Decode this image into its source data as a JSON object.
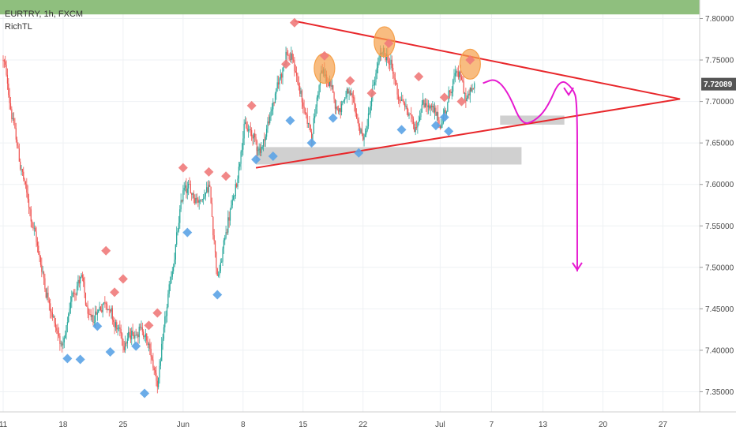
{
  "header": {
    "symbol_line": "EURTRY, 1h, FXCM",
    "indicator": "RichTL"
  },
  "chart_data": {
    "type": "candlestick",
    "symbol": "EURTRY",
    "timeframe": "1h",
    "source": "FXCM",
    "indicator": "RichTL",
    "ylim": [
      7.32,
      7.815
    ],
    "y_ticks": [
      "7.80000",
      "7.75000",
      "7.70000",
      "7.65000",
      "7.60000",
      "7.55000",
      "7.50000",
      "7.45000",
      "7.40000",
      "7.35000"
    ],
    "y_tick_values": [
      7.8,
      7.75,
      7.7,
      7.65,
      7.6,
      7.55,
      7.5,
      7.45,
      7.4,
      7.35
    ],
    "x_range_days": [
      0,
      47
    ],
    "x_ticks": [
      {
        "label": "11",
        "day": 0
      },
      {
        "label": "18",
        "day": 7
      },
      {
        "label": "25",
        "day": 14
      },
      {
        "label": "Jun",
        "day": 21
      },
      {
        "label": "8",
        "day": 28
      },
      {
        "label": "15",
        "day": 35
      },
      {
        "label": "22",
        "day": 42
      },
      {
        "label": "Jul",
        "day": 51
      },
      {
        "label": "7",
        "day": 57
      },
      {
        "label": "13",
        "day": 63
      },
      {
        "label": "20",
        "day": 70
      },
      {
        "label": "27",
        "day": 77
      }
    ],
    "current_price": "7.72089",
    "current_price_value": 7.72089,
    "colors": {
      "up": "#26a69a",
      "down": "#ef5350",
      "triangle": "#e8272b",
      "projection": "#e61ad0",
      "zone": "#c8c8c8",
      "top_band": "#8fbf7e",
      "swing_high_marker": "#f07a7a",
      "swing_low_marker": "#5ba3e6",
      "highlight": "#f5a04a",
      "price_label": "#555555"
    },
    "price_path": [
      [
        0,
        7.75
      ],
      [
        1,
        7.68
      ],
      [
        2,
        7.62
      ],
      [
        3,
        7.57
      ],
      [
        4,
        7.52
      ],
      [
        5,
        7.47
      ],
      [
        6,
        7.43
      ],
      [
        7,
        7.4
      ],
      [
        8,
        7.47
      ],
      [
        9,
        7.49
      ],
      [
        10,
        7.43
      ],
      [
        11,
        7.45
      ],
      [
        12,
        7.46
      ],
      [
        13,
        7.43
      ],
      [
        14,
        7.41
      ],
      [
        15,
        7.42
      ],
      [
        16,
        7.43
      ],
      [
        17,
        7.4
      ],
      [
        18,
        7.36
      ],
      [
        19,
        7.45
      ],
      [
        20,
        7.52
      ],
      [
        21,
        7.6
      ],
      [
        22,
        7.59
      ],
      [
        23,
        7.58
      ],
      [
        24,
        7.6
      ],
      [
        25,
        7.48
      ],
      [
        26,
        7.55
      ],
      [
        27,
        7.59
      ],
      [
        28,
        7.67
      ],
      [
        29,
        7.66
      ],
      [
        30,
        7.64
      ],
      [
        31,
        7.68
      ],
      [
        32,
        7.72
      ],
      [
        33,
        7.76
      ],
      [
        34,
        7.74
      ],
      [
        35,
        7.69
      ],
      [
        36,
        7.66
      ],
      [
        37,
        7.74
      ],
      [
        38,
        7.72
      ],
      [
        39,
        7.69
      ],
      [
        40,
        7.71
      ],
      [
        41,
        7.69
      ],
      [
        42,
        7.65
      ],
      [
        43,
        7.71
      ],
      [
        44,
        7.76
      ],
      [
        45,
        7.75
      ],
      [
        46,
        7.71
      ],
      [
        47,
        7.69
      ],
      [
        48,
        7.67
      ],
      [
        49,
        7.7
      ],
      [
        50,
        7.69
      ],
      [
        51,
        7.67
      ],
      [
        52,
        7.71
      ],
      [
        53,
        7.74
      ],
      [
        54,
        7.7
      ],
      [
        55,
        7.72
      ]
    ],
    "swing_highs": [
      [
        12.0,
        7.52
      ],
      [
        14.0,
        7.486
      ],
      [
        13.0,
        7.47
      ],
      [
        18.0,
        7.445
      ],
      [
        17.0,
        7.43
      ],
      [
        21.0,
        7.62
      ],
      [
        24.0,
        7.615
      ],
      [
        26.0,
        7.61
      ],
      [
        29.0,
        7.695
      ],
      [
        33.0,
        7.745
      ],
      [
        34.0,
        7.795
      ],
      [
        37.5,
        7.755
      ],
      [
        40.5,
        7.725
      ],
      [
        43.0,
        7.71
      ],
      [
        45.0,
        7.77
      ],
      [
        48.5,
        7.73
      ],
      [
        51.5,
        7.705
      ],
      [
        53.5,
        7.7
      ],
      [
        54.5,
        7.75
      ]
    ],
    "swing_lows": [
      [
        7.5,
        7.39
      ],
      [
        9.0,
        7.389
      ],
      [
        11.0,
        7.429
      ],
      [
        12.5,
        7.398
      ],
      [
        15.5,
        7.405
      ],
      [
        16.5,
        7.348
      ],
      [
        21.5,
        7.542
      ],
      [
        25.0,
        7.467
      ],
      [
        29.5,
        7.63
      ],
      [
        31.5,
        7.634
      ],
      [
        33.5,
        7.677
      ],
      [
        36.0,
        7.65
      ],
      [
        38.5,
        7.68
      ],
      [
        41.5,
        7.638
      ],
      [
        46.5,
        7.666
      ],
      [
        50.5,
        7.671
      ],
      [
        51.5,
        7.681
      ],
      [
        52.0,
        7.664
      ]
    ],
    "highlighted_highs": [
      [
        37.5,
        7.74
      ],
      [
        44.5,
        7.772
      ],
      [
        54.5,
        7.745
      ]
    ],
    "triangle": {
      "upper": [
        [
          34.0,
          7.797
        ],
        [
          79.0,
          7.703
        ]
      ],
      "lower": [
        [
          29.5,
          7.62
        ],
        [
          79.0,
          7.703
        ]
      ]
    },
    "zones": [
      {
        "from_day": 29.5,
        "to_day": 60.5,
        "low": 7.624,
        "high": 7.645
      },
      {
        "from_day": 58.0,
        "to_day": 65.5,
        "low": 7.672,
        "high": 7.683
      }
    ],
    "top_band_from": 7.805,
    "projection": {
      "path": [
        [
          56.0,
          7.722
        ],
        [
          57.5,
          7.728
        ],
        [
          59.0,
          7.71
        ],
        [
          60.5,
          7.672
        ],
        [
          62.0,
          7.676
        ],
        [
          63.5,
          7.692
        ],
        [
          65.0,
          7.728
        ],
        [
          66.5,
          7.716
        ],
        [
          67.0,
          7.7
        ],
        [
          67.0,
          7.6
        ],
        [
          67.0,
          7.495
        ]
      ],
      "arrow_points": [
        [
          66.0,
          7.708
        ],
        [
          67.0,
          7.497
        ]
      ]
    }
  }
}
